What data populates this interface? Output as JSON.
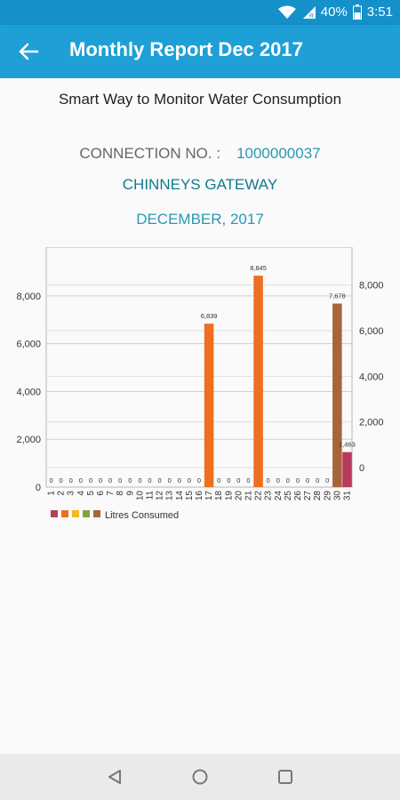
{
  "status_bar": {
    "battery": "40%",
    "time": "3:51",
    "icons": [
      "wifi-icon",
      "signal-icon",
      "battery-icon"
    ]
  },
  "app_bar": {
    "title": "Monthly Report Dec 2017",
    "back_icon": "back-arrow-icon"
  },
  "tagline": "Smart Way to Monitor Water Consumption",
  "connection": {
    "label": "CONNECTION NO. :",
    "value": "1000000037"
  },
  "site_name": "CHINNEYS GATEWAY",
  "period": "DECEMBER, 2017",
  "colors": {
    "primary": "#1ea0d6",
    "status_bar": "#1590c9",
    "bar_colors": [
      "#b83a5d",
      "#ee6f1f",
      "#f2b824",
      "#7ca43a",
      "#a8643a"
    ]
  },
  "chart_data": {
    "type": "bar",
    "categories": [
      "1",
      "2",
      "3",
      "4",
      "5",
      "6",
      "7",
      "8",
      "9",
      "10",
      "11",
      "12",
      "13",
      "14",
      "15",
      "16",
      "17",
      "18",
      "19",
      "20",
      "21",
      "22",
      "23",
      "24",
      "25",
      "26",
      "27",
      "28",
      "29",
      "30",
      "31"
    ],
    "series": [
      {
        "name": "Litres Consumed",
        "values": [
          0,
          0,
          0,
          0,
          0,
          0,
          0,
          0,
          0,
          0,
          0,
          0,
          0,
          0,
          0,
          0,
          6839,
          0,
          0,
          0,
          0,
          8845,
          0,
          0,
          0,
          0,
          0,
          0,
          0,
          7678,
          1463
        ]
      }
    ],
    "value_labels": [
      "0",
      "0",
      "0",
      "0",
      "0",
      "0",
      "0",
      "0",
      "0",
      "0",
      "0",
      "0",
      "0",
      "0",
      "0",
      "0",
      "6,839",
      "0",
      "0",
      "0",
      "0",
      "8,845",
      "0",
      "0",
      "0",
      "0",
      "0",
      "0",
      "0",
      "7,678",
      "1,463"
    ],
    "left_axis": {
      "ylim": [
        0,
        9000
      ],
      "ticks": [
        "0",
        "2,000",
        "4,000",
        "6,000",
        "8,000"
      ]
    },
    "right_axis": {
      "ticks": [
        "0",
        "2,000",
        "4,000",
        "6,000",
        "8,000"
      ]
    },
    "grid": true,
    "legend_position": "bottom-left",
    "xlabel": "",
    "ylabel": ""
  },
  "nav_bar": {
    "buttons": [
      "back-triangle-icon",
      "home-circle-icon",
      "recents-square-icon"
    ]
  }
}
